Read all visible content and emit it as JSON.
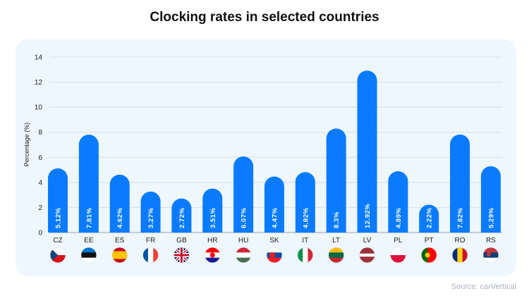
{
  "title": "Clocking rates in selected countries",
  "source": "Source: carVertical",
  "colors": {
    "bar": "#0a7bff",
    "card": "#eef6fe",
    "grid": "#d6dde6",
    "axis": "#9aa3ad"
  },
  "chart_data": {
    "type": "bar",
    "title": "Clocking rates in selected countries",
    "xlabel": "",
    "ylabel": "Percentage (%)",
    "ylim": [
      0,
      14
    ],
    "yticks": [
      0,
      2,
      4,
      6,
      8,
      10,
      12,
      14
    ],
    "grid": true,
    "categories": [
      "CZ",
      "EE",
      "ES",
      "FR",
      "GB",
      "HR",
      "HU",
      "SK",
      "IT",
      "LT",
      "LV",
      "PL",
      "PT",
      "RO",
      "RS"
    ],
    "values": [
      5.12,
      7.81,
      4.62,
      3.27,
      2.72,
      3.51,
      6.07,
      4.47,
      4.82,
      8.3,
      12.92,
      4.89,
      2.22,
      7.82,
      5.29
    ],
    "data_labels": [
      "5.12%",
      "7.81%",
      "4.62%",
      "3.27%",
      "2.72%",
      "3.51%",
      "6.07%",
      "4.47%",
      "4.82%",
      "8.3%",
      "12.92%",
      "4.89%",
      "2.22%",
      "7.82%",
      "5.29%"
    ],
    "flag_icons": [
      "czech-flag-icon",
      "estonia-flag-icon",
      "spain-flag-icon",
      "france-flag-icon",
      "uk-flag-icon",
      "croatia-flag-icon",
      "hungary-flag-icon",
      "slovakia-flag-icon",
      "italy-flag-icon",
      "lithuania-flag-icon",
      "latvia-flag-icon",
      "poland-flag-icon",
      "portugal-flag-icon",
      "romania-flag-icon",
      "serbia-flag-icon"
    ]
  }
}
